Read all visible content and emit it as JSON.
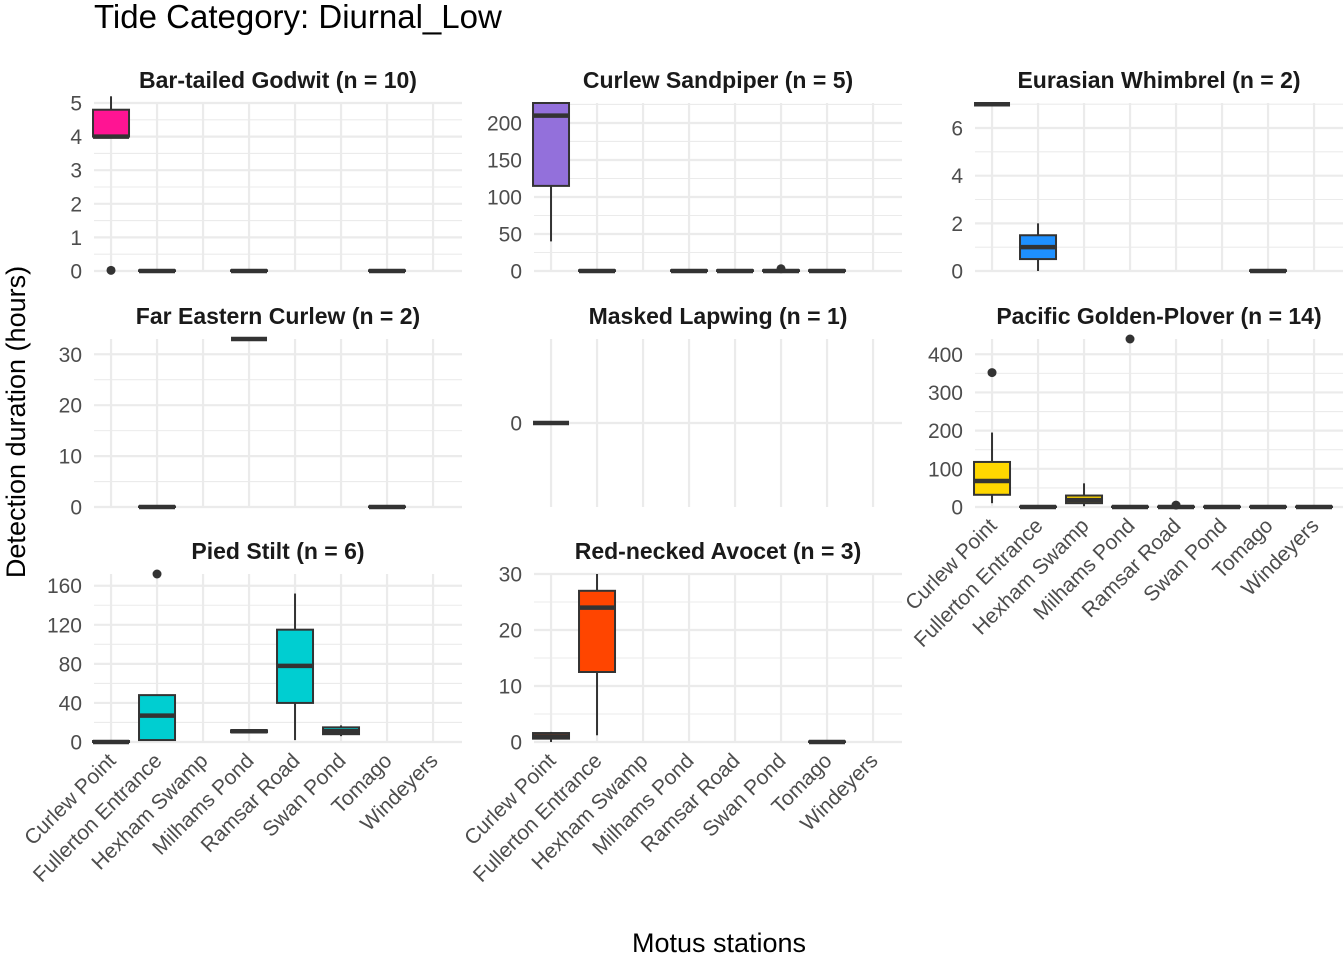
{
  "chart_data": {
    "type": "boxplot",
    "title": "Tide Category: Diurnal_Low",
    "xlabel": "Motus stations",
    "ylabel": "Detection duration (hours)",
    "grid": true,
    "legend": "none",
    "facet_layout": "3 columns x 3 rows, free y scales",
    "categories": [
      "Curlew Point",
      "Fullerton Entrance",
      "Hexham Swamp",
      "Milhams Pond",
      "Ramsar Road",
      "Swan Pond",
      "Tomago",
      "Windeyers"
    ],
    "panels": [
      {
        "title": "Bar-tailed Godwit (n = 10)",
        "color": "#ff1493",
        "ylim": [
          0,
          5
        ],
        "yticks": [
          0,
          1,
          2,
          3,
          4,
          5
        ],
        "boxes": [
          {
            "station": "Curlew Point",
            "min": 4.0,
            "q1": 4.0,
            "median": 4.0,
            "q3": 4.8,
            "max": 5.2,
            "outliers": [
              0.02
            ]
          },
          {
            "station": "Fullerton Entrance",
            "min": 0,
            "q1": 0,
            "median": 0,
            "q3": 0.02,
            "max": 0.02,
            "outliers": []
          },
          {
            "station": "Milhams Pond",
            "min": 0,
            "q1": 0,
            "median": 0,
            "q3": 0.02,
            "max": 0.02,
            "outliers": []
          },
          {
            "station": "Tomago",
            "min": 0,
            "q1": 0,
            "median": 0,
            "q3": 0.02,
            "max": 0.02,
            "outliers": []
          }
        ]
      },
      {
        "title": "Curlew Sandpiper (n = 5)",
        "color": "#9370db",
        "ylim": [
          0,
          227
        ],
        "yticks": [
          0,
          50,
          100,
          150,
          200
        ],
        "boxes": [
          {
            "station": "Curlew Point",
            "min": 40,
            "q1": 115,
            "median": 210,
            "q3": 227,
            "max": 227,
            "outliers": []
          },
          {
            "station": "Fullerton Entrance",
            "min": 0,
            "q1": 0,
            "median": 0,
            "q3": 1,
            "max": 1,
            "outliers": []
          },
          {
            "station": "Milhams Pond",
            "min": 0,
            "q1": 0,
            "median": 0,
            "q3": 1,
            "max": 1,
            "outliers": []
          },
          {
            "station": "Ramsar Road",
            "min": 0,
            "q1": 0,
            "median": 0,
            "q3": 1,
            "max": 1,
            "outliers": []
          },
          {
            "station": "Swan Pond",
            "min": 0,
            "q1": 0,
            "median": 0,
            "q3": 1,
            "max": 1,
            "outliers": [
              3
            ]
          },
          {
            "station": "Tomago",
            "min": 0,
            "q1": 0,
            "median": 0,
            "q3": 1,
            "max": 1,
            "outliers": []
          }
        ]
      },
      {
        "title": "Eurasian Whimbrel (n = 2)",
        "color": "#1e90ff",
        "ylim": [
          0,
          7.05
        ],
        "yticks": [
          0,
          2,
          4,
          6
        ],
        "boxes": [
          {
            "station": "Curlew Point",
            "min": 7.0,
            "q1": 7.0,
            "median": 7.0,
            "q3": 7.0,
            "max": 7.0,
            "outliers": []
          },
          {
            "station": "Fullerton Entrance",
            "min": 0,
            "q1": 0.5,
            "median": 1.0,
            "q3": 1.5,
            "max": 2.0,
            "outliers": []
          },
          {
            "station": "Tomago",
            "min": 0,
            "q1": 0,
            "median": 0,
            "q3": 0.03,
            "max": 0.03,
            "outliers": []
          }
        ]
      },
      {
        "title": "Far Eastern Curlew (n = 2)",
        "color": "#4d4d4d",
        "ylim": [
          0,
          33
        ],
        "yticks": [
          0,
          10,
          20,
          30
        ],
        "boxes": [
          {
            "station": "Fullerton Entrance",
            "min": 0,
            "q1": 0,
            "median": 0,
            "q3": 0.1,
            "max": 0.1,
            "outliers": []
          },
          {
            "station": "Milhams Pond",
            "min": 33,
            "q1": 33,
            "median": 33,
            "q3": 33,
            "max": 33,
            "outliers": []
          },
          {
            "station": "Tomago",
            "min": 0,
            "q1": 0,
            "median": 0,
            "q3": 0.1,
            "max": 0.1,
            "outliers": []
          }
        ]
      },
      {
        "title": "Masked Lapwing (n = 1)",
        "color": "#4d4d4d",
        "ylim": [
          -0.05,
          0.05
        ],
        "yticks": [
          0
        ],
        "boxes": [
          {
            "station": "Curlew Point",
            "min": 0,
            "q1": 0,
            "median": 0,
            "q3": 0,
            "max": 0,
            "outliers": []
          }
        ]
      },
      {
        "title": "Pacific Golden-Plover (n = 14)",
        "color": "#ffd700",
        "ylim": [
          0,
          440
        ],
        "yticks": [
          0,
          100,
          200,
          300,
          400
        ],
        "boxes": [
          {
            "station": "Curlew Point",
            "min": 10,
            "q1": 32,
            "median": 68,
            "q3": 118,
            "max": 195,
            "outliers": [
              352
            ]
          },
          {
            "station": "Fullerton Entrance",
            "min": 0,
            "q1": 0,
            "median": 0,
            "q3": 1,
            "max": 1,
            "outliers": []
          },
          {
            "station": "Hexham Swamp",
            "min": 2,
            "q1": 10,
            "median": 18,
            "q3": 30,
            "max": 62,
            "outliers": []
          },
          {
            "station": "Milhams Pond",
            "min": 0,
            "q1": 0,
            "median": 0,
            "q3": 1,
            "max": 1,
            "outliers": [
              440
            ]
          },
          {
            "station": "Ramsar Road",
            "min": 0,
            "q1": 0,
            "median": 0,
            "q3": 1,
            "max": 1,
            "outliers": [
              5
            ]
          },
          {
            "station": "Swan Pond",
            "min": 0,
            "q1": 0,
            "median": 0,
            "q3": 1,
            "max": 1,
            "outliers": []
          },
          {
            "station": "Tomago",
            "min": 0,
            "q1": 0,
            "median": 0,
            "q3": 1,
            "max": 1,
            "outliers": []
          },
          {
            "station": "Windeyers",
            "min": 0,
            "q1": 0,
            "median": 0,
            "q3": 1,
            "max": 1,
            "outliers": []
          }
        ]
      },
      {
        "title": "Pied Stilt (n = 6)",
        "color": "#00ced1",
        "ylim": [
          0,
          172
        ],
        "yticks": [
          0,
          40,
          80,
          120,
          160
        ],
        "boxes": [
          {
            "station": "Curlew Point",
            "min": 0,
            "q1": 0,
            "median": 0,
            "q3": 1,
            "max": 1,
            "outliers": []
          },
          {
            "station": "Fullerton Entrance",
            "min": 2,
            "q1": 2,
            "median": 27,
            "q3": 48,
            "max": 48,
            "outliers": [
              172
            ]
          },
          {
            "station": "Milhams Pond",
            "min": 10,
            "q1": 10,
            "median": 11,
            "q3": 12,
            "max": 12,
            "outliers": []
          },
          {
            "station": "Ramsar Road",
            "min": 2,
            "q1": 40,
            "median": 78,
            "q3": 115,
            "max": 152,
            "outliers": []
          },
          {
            "station": "Swan Pond",
            "min": 6,
            "q1": 8,
            "median": 11,
            "q3": 15,
            "max": 17,
            "outliers": []
          }
        ]
      },
      {
        "title": "Red-necked Avocet (n = 3)",
        "color": "#ff4500",
        "ylim": [
          0,
          30
        ],
        "yticks": [
          0,
          10,
          20,
          30
        ],
        "boxes": [
          {
            "station": "Curlew Point",
            "min": 0,
            "q1": 0.6,
            "median": 1.0,
            "q3": 1.6,
            "max": 1.8,
            "outliers": []
          },
          {
            "station": "Fullerton Entrance",
            "min": 1.2,
            "q1": 12.5,
            "median": 24.0,
            "q3": 27.0,
            "max": 30.0,
            "outliers": []
          },
          {
            "station": "Tomago",
            "min": 0,
            "q1": 0,
            "median": 0,
            "q3": 0.1,
            "max": 0.1,
            "outliers": []
          }
        ]
      }
    ]
  }
}
